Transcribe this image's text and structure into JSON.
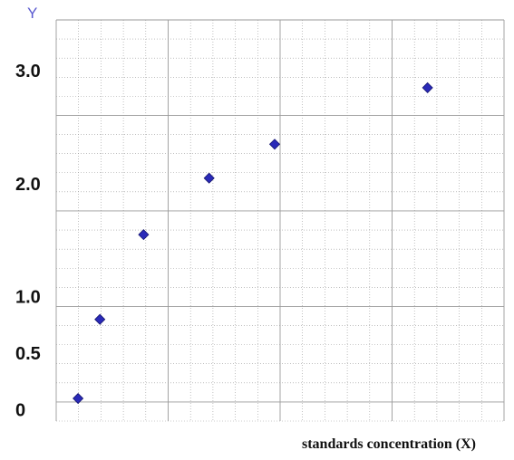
{
  "chart_data": {
    "type": "scatter",
    "title": "",
    "xlabel": "standards concentration (X)",
    "ylabel": "Y",
    "x": [
      1,
      2,
      4,
      7,
      10,
      17
    ],
    "y": [
      0.1,
      0.8,
      1.55,
      2.05,
      2.35,
      2.85
    ],
    "y_tick_labels": [
      {
        "label": "0",
        "value": 0
      },
      {
        "label": "0.5",
        "value": 0.5
      },
      {
        "label": "1.0",
        "value": 1.0
      },
      {
        "label": "2.0",
        "value": 2.0
      },
      {
        "label": "3.0",
        "value": 3.0
      }
    ],
    "xlim": [
      0,
      20.5
    ],
    "ylim": [
      -0.1,
      3.45
    ],
    "grid": true,
    "marker": "diamond",
    "marker_color": "#2a2ab8",
    "grid_color": "#9a9a9a"
  }
}
